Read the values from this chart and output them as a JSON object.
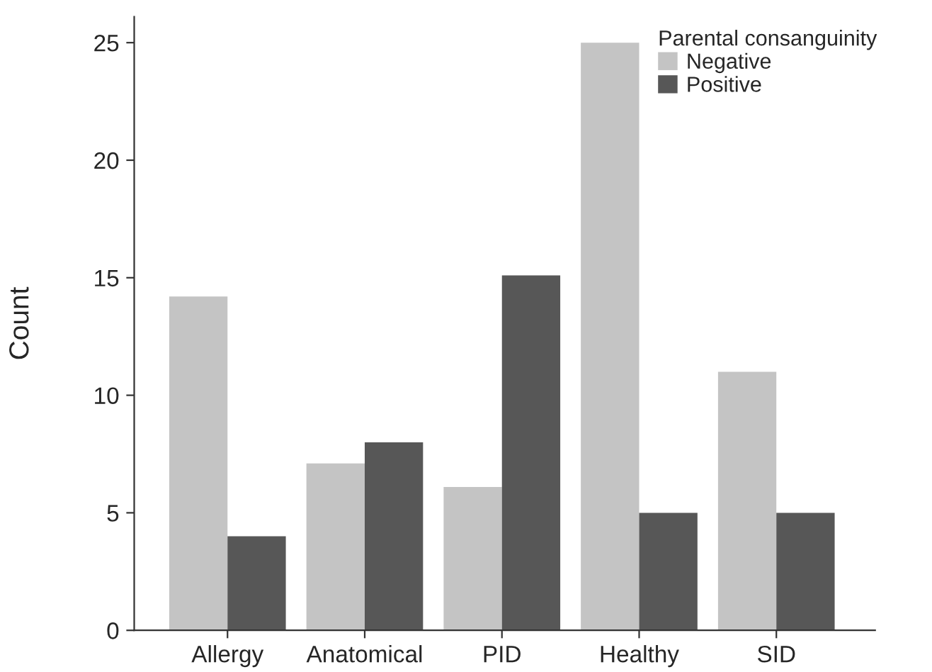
{
  "chart_data": {
    "type": "bar",
    "ylabel": "Count",
    "legend_title": "Parental consanguinity",
    "legend": "top right",
    "grid": false,
    "categories": [
      "Allergy",
      "Anatomical",
      "PID",
      "Healthy",
      "SID"
    ],
    "series": [
      {
        "name": "Negative",
        "color": "#c4c4c4",
        "values": [
          14.2,
          7.1,
          6.1,
          25,
          11
        ]
      },
      {
        "name": "Positive",
        "color": "#575757",
        "values": [
          4,
          8,
          15.1,
          5,
          5
        ]
      }
    ],
    "ylim": [
      0,
      26.1
    ],
    "yticks": [
      0,
      5,
      10,
      15,
      20,
      25
    ]
  }
}
